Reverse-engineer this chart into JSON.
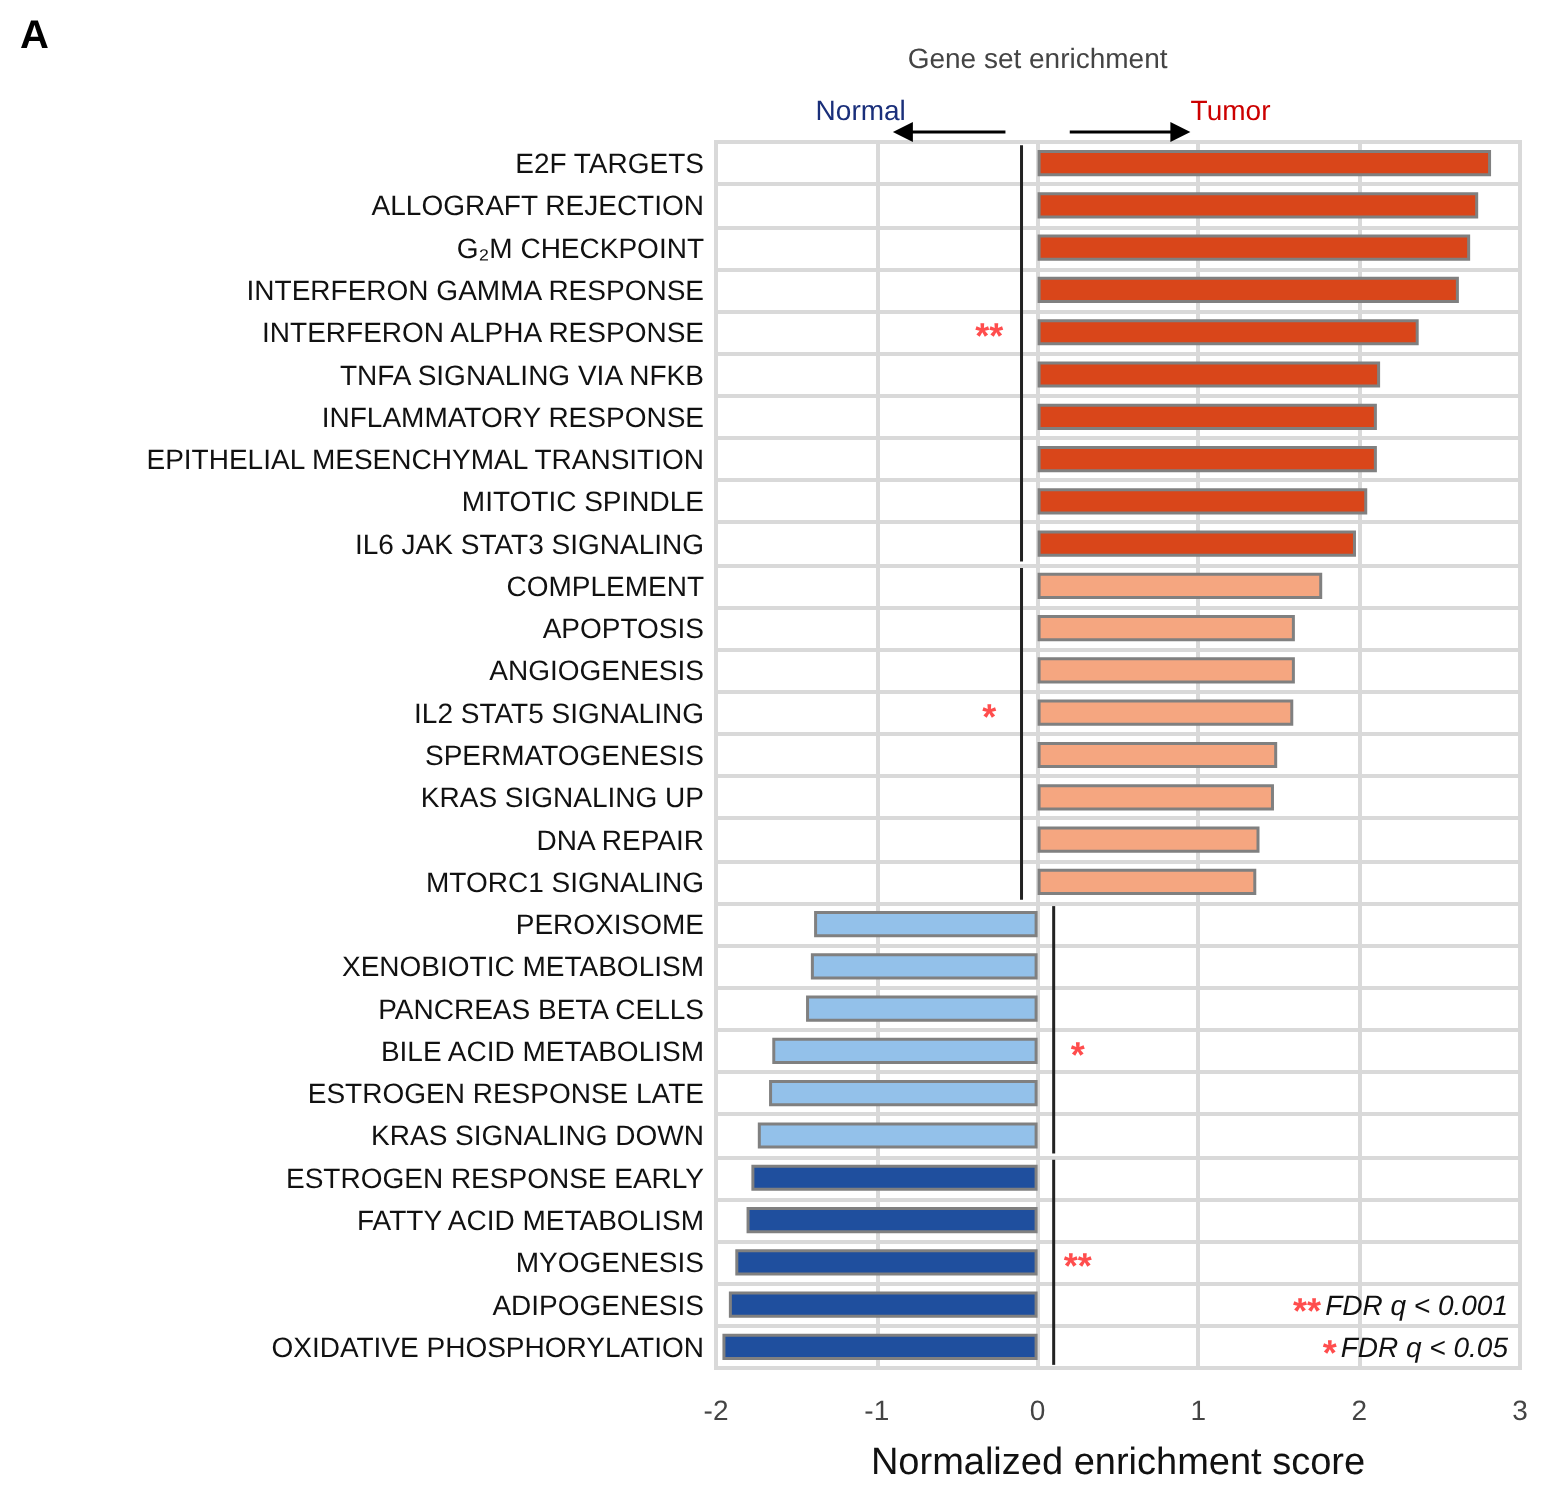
{
  "chart_data": {
    "type": "bar",
    "orientation": "horizontal",
    "title": "Gene set enrichment",
    "xlabel": "Normalized enrichment score",
    "categories": [
      "E2F TARGETS",
      "ALLOGRAFT REJECTION",
      "G₂M CHECKPOINT",
      "INTERFERON GAMMA RESPONSE",
      "INTERFERON ALPHA RESPONSE",
      "TNFA SIGNALING VIA NFKB",
      "INFLAMMATORY RESPONSE",
      "EPITHELIAL MESENCHYMAL TRANSITION",
      "MITOTIC SPINDLE",
      "IL6 JAK STAT3 SIGNALING",
      "COMPLEMENT",
      "APOPTOSIS",
      "ANGIOGENESIS",
      "IL2 STAT5 SIGNALING",
      "SPERMATOGENESIS",
      "KRAS SIGNALING UP",
      "DNA REPAIR",
      "MTORC1 SIGNALING",
      "PEROXISOME",
      "XENOBIOTIC METABOLISM",
      "PANCREAS BETA CELLS",
      "BILE ACID METABOLISM",
      "ESTROGEN RESPONSE LATE",
      "KRAS SIGNALING DOWN",
      "ESTROGEN RESPONSE EARLY",
      "FATTY ACID METABOLISM",
      "MYOGENESIS",
      "ADIPOGENESIS",
      "OXIDATIVE PHOSPHORYLATION"
    ],
    "values": [
      2.82,
      2.74,
      2.69,
      2.62,
      2.37,
      2.13,
      2.11,
      2.11,
      2.05,
      1.98,
      1.77,
      1.6,
      1.6,
      1.59,
      1.49,
      1.47,
      1.38,
      1.36,
      -1.39,
      -1.41,
      -1.44,
      -1.65,
      -1.67,
      -1.74,
      -1.78,
      -1.81,
      -1.88,
      -1.92,
      -1.96
    ],
    "colors": [
      "#d9461a",
      "#d9461a",
      "#d9461a",
      "#d9461a",
      "#d9461a",
      "#d9461a",
      "#d9461a",
      "#d9461a",
      "#d9461a",
      "#d9461a",
      "#f5a680",
      "#f5a680",
      "#f5a680",
      "#f5a680",
      "#f5a680",
      "#f5a680",
      "#f5a680",
      "#f5a680",
      "#93c1ea",
      "#93c1ea",
      "#93c1ea",
      "#93c1ea",
      "#93c1ea",
      "#93c1ea",
      "#1f4f9e",
      "#1f4f9e",
      "#1f4f9e",
      "#1f4f9e",
      "#1f4f9e"
    ],
    "xlim": [
      -2,
      3
    ],
    "xticks": [
      -2,
      -1,
      0,
      1,
      2,
      3
    ],
    "grid": true,
    "annotations": [
      "A",
      "Normal",
      "Tumor",
      "**",
      "*",
      "*",
      "**",
      "**",
      "FDR q < 0.001",
      "*",
      "FDR q < 0.05"
    ]
  }
}
